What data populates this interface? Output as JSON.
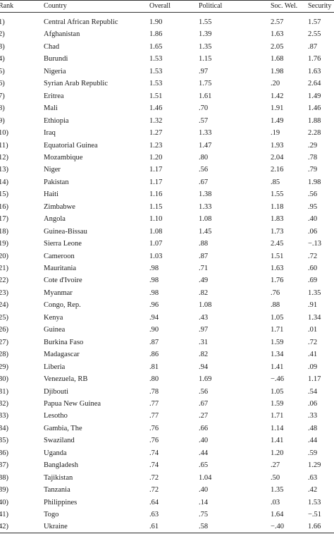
{
  "table": {
    "headers": {
      "rank": "Rank",
      "country": "Country",
      "overall": "Overall",
      "political": "Political",
      "socwel": "Soc. Wel.",
      "security": "Security"
    },
    "rows": [
      {
        "rank": "1)",
        "country": "Central African Republic",
        "overall": "1.90",
        "political": "1.55",
        "socwel": "2.57",
        "security": "1.57"
      },
      {
        "rank": "2)",
        "country": "Afghanistan",
        "overall": "1.86",
        "political": "1.39",
        "socwel": "1.63",
        "security": "2.55"
      },
      {
        "rank": "3)",
        "country": "Chad",
        "overall": "1.65",
        "political": "1.35",
        "socwel": "2.05",
        "security": ".87"
      },
      {
        "rank": "4)",
        "country": "Burundi",
        "overall": "1.53",
        "political": "1.15",
        "socwel": "1.68",
        "security": "1.76"
      },
      {
        "rank": "5)",
        "country": "Nigeria",
        "overall": "1.53",
        "political": ".97",
        "socwel": "1.98",
        "security": "1.63"
      },
      {
        "rank": "6)",
        "country": "Syrian Arab Republic",
        "overall": "1.53",
        "political": "1.75",
        "socwel": ".20",
        "security": "2.64"
      },
      {
        "rank": "7)",
        "country": "Eritrea",
        "overall": "1.51",
        "political": "1.61",
        "socwel": "1.42",
        "security": "1.49"
      },
      {
        "rank": "8)",
        "country": "Mali",
        "overall": "1.46",
        "political": ".70",
        "socwel": "1.91",
        "security": "1.46"
      },
      {
        "rank": "9)",
        "country": "Ethiopia",
        "overall": "1.32",
        "political": ".57",
        "socwel": "1.49",
        "security": "1.88"
      },
      {
        "rank": "10)",
        "country": "Iraq",
        "overall": "1.27",
        "political": "1.33",
        "socwel": ".19",
        "security": "2.28"
      },
      {
        "rank": "11)",
        "country": "Equatorial Guinea",
        "overall": "1.23",
        "political": "1.47",
        "socwel": "1.93",
        "security": ".29"
      },
      {
        "rank": "12)",
        "country": "Mozambique",
        "overall": "1.20",
        "political": ".80",
        "socwel": "2.04",
        "security": ".78"
      },
      {
        "rank": "13)",
        "country": "Niger",
        "overall": "1.17",
        "political": ".56",
        "socwel": "2.16",
        "security": ".79"
      },
      {
        "rank": "14)",
        "country": "Pakistan",
        "overall": "1.17",
        "political": ".67",
        "socwel": ".85",
        "security": "1.98"
      },
      {
        "rank": "15)",
        "country": "Haiti",
        "overall": "1.16",
        "political": "1.38",
        "socwel": "1.55",
        "security": ".56"
      },
      {
        "rank": "16)",
        "country": "Zimbabwe",
        "overall": "1.15",
        "political": "1.33",
        "socwel": "1.18",
        "security": ".95"
      },
      {
        "rank": "17)",
        "country": "Angola",
        "overall": "1.10",
        "political": "1.08",
        "socwel": "1.83",
        "security": ".40"
      },
      {
        "rank": "18)",
        "country": "Guinea-Bissau",
        "overall": "1.08",
        "political": "1.45",
        "socwel": "1.73",
        "security": ".06"
      },
      {
        "rank": "19)",
        "country": "Sierra Leone",
        "overall": "1.07",
        "political": ".88",
        "socwel": "2.45",
        "security": "−.13"
      },
      {
        "rank": "20)",
        "country": "Cameroon",
        "overall": "1.03",
        "political": ".87",
        "socwel": "1.51",
        "security": ".72"
      },
      {
        "rank": "21)",
        "country": "Mauritania",
        "overall": ".98",
        "political": ".71",
        "socwel": "1.63",
        "security": ".60"
      },
      {
        "rank": "22)",
        "country": "Cote d'Ivoire",
        "overall": ".98",
        "political": ".49",
        "socwel": "1.76",
        "security": ".69"
      },
      {
        "rank": "23)",
        "country": "Myanmar",
        "overall": ".98",
        "political": ".82",
        "socwel": ".76",
        "security": "1.35"
      },
      {
        "rank": "24)",
        "country": "Congo, Rep.",
        "overall": ".96",
        "political": "1.08",
        "socwel": ".88",
        "security": ".91"
      },
      {
        "rank": "25)",
        "country": "Kenya",
        "overall": ".94",
        "political": ".43",
        "socwel": "1.05",
        "security": "1.34"
      },
      {
        "rank": "26)",
        "country": "Guinea",
        "overall": ".90",
        "political": ".97",
        "socwel": "1.71",
        "security": ".01"
      },
      {
        "rank": "27)",
        "country": "Burkina Faso",
        "overall": ".87",
        "political": ".31",
        "socwel": "1.59",
        "security": ".72"
      },
      {
        "rank": "28)",
        "country": "Madagascar",
        "overall": ".86",
        "political": ".82",
        "socwel": "1.34",
        "security": ".41"
      },
      {
        "rank": "29)",
        "country": "Liberia",
        "overall": ".81",
        "political": ".94",
        "socwel": "1.41",
        "security": ".09"
      },
      {
        "rank": "30)",
        "country": "Venezuela, RB",
        "overall": ".80",
        "political": "1.69",
        "socwel": "−.46",
        "security": "1.17"
      },
      {
        "rank": "31)",
        "country": "Djibouti",
        "overall": ".78",
        "political": ".56",
        "socwel": "1.05",
        "security": ".54"
      },
      {
        "rank": "32)",
        "country": "Papua New Guinea",
        "overall": ".77",
        "political": ".67",
        "socwel": "1.59",
        "security": ".06"
      },
      {
        "rank": "33)",
        "country": "Lesotho",
        "overall": ".77",
        "political": ".27",
        "socwel": "1.71",
        "security": ".33"
      },
      {
        "rank": "34)",
        "country": "Gambia, The",
        "overall": ".76",
        "political": ".66",
        "socwel": "1.14",
        "security": ".48"
      },
      {
        "rank": "35)",
        "country": "Swaziland",
        "overall": ".76",
        "political": ".40",
        "socwel": "1.41",
        "security": ".44"
      },
      {
        "rank": "36)",
        "country": "Uganda",
        "overall": ".74",
        "political": ".44",
        "socwel": "1.20",
        "security": ".59"
      },
      {
        "rank": "37)",
        "country": "Bangladesh",
        "overall": ".74",
        "political": ".65",
        "socwel": ".27",
        "security": "1.29"
      },
      {
        "rank": "38)",
        "country": "Tajikistan",
        "overall": ".72",
        "political": "1.04",
        "socwel": ".50",
        "security": ".63"
      },
      {
        "rank": "39)",
        "country": "Tanzania",
        "overall": ".72",
        "political": ".40",
        "socwel": "1.35",
        "security": ".42"
      },
      {
        "rank": "40)",
        "country": "Philippines",
        "overall": ".64",
        "political": ".14",
        "socwel": ".03",
        "security": "1.53"
      },
      {
        "rank": "41)",
        "country": "Togo",
        "overall": ".63",
        "political": ".75",
        "socwel": "1.64",
        "security": "−.51"
      },
      {
        "rank": "42)",
        "country": "Ukraine",
        "overall": ".61",
        "political": ".58",
        "socwel": "−.40",
        "security": "1.66"
      }
    ]
  }
}
